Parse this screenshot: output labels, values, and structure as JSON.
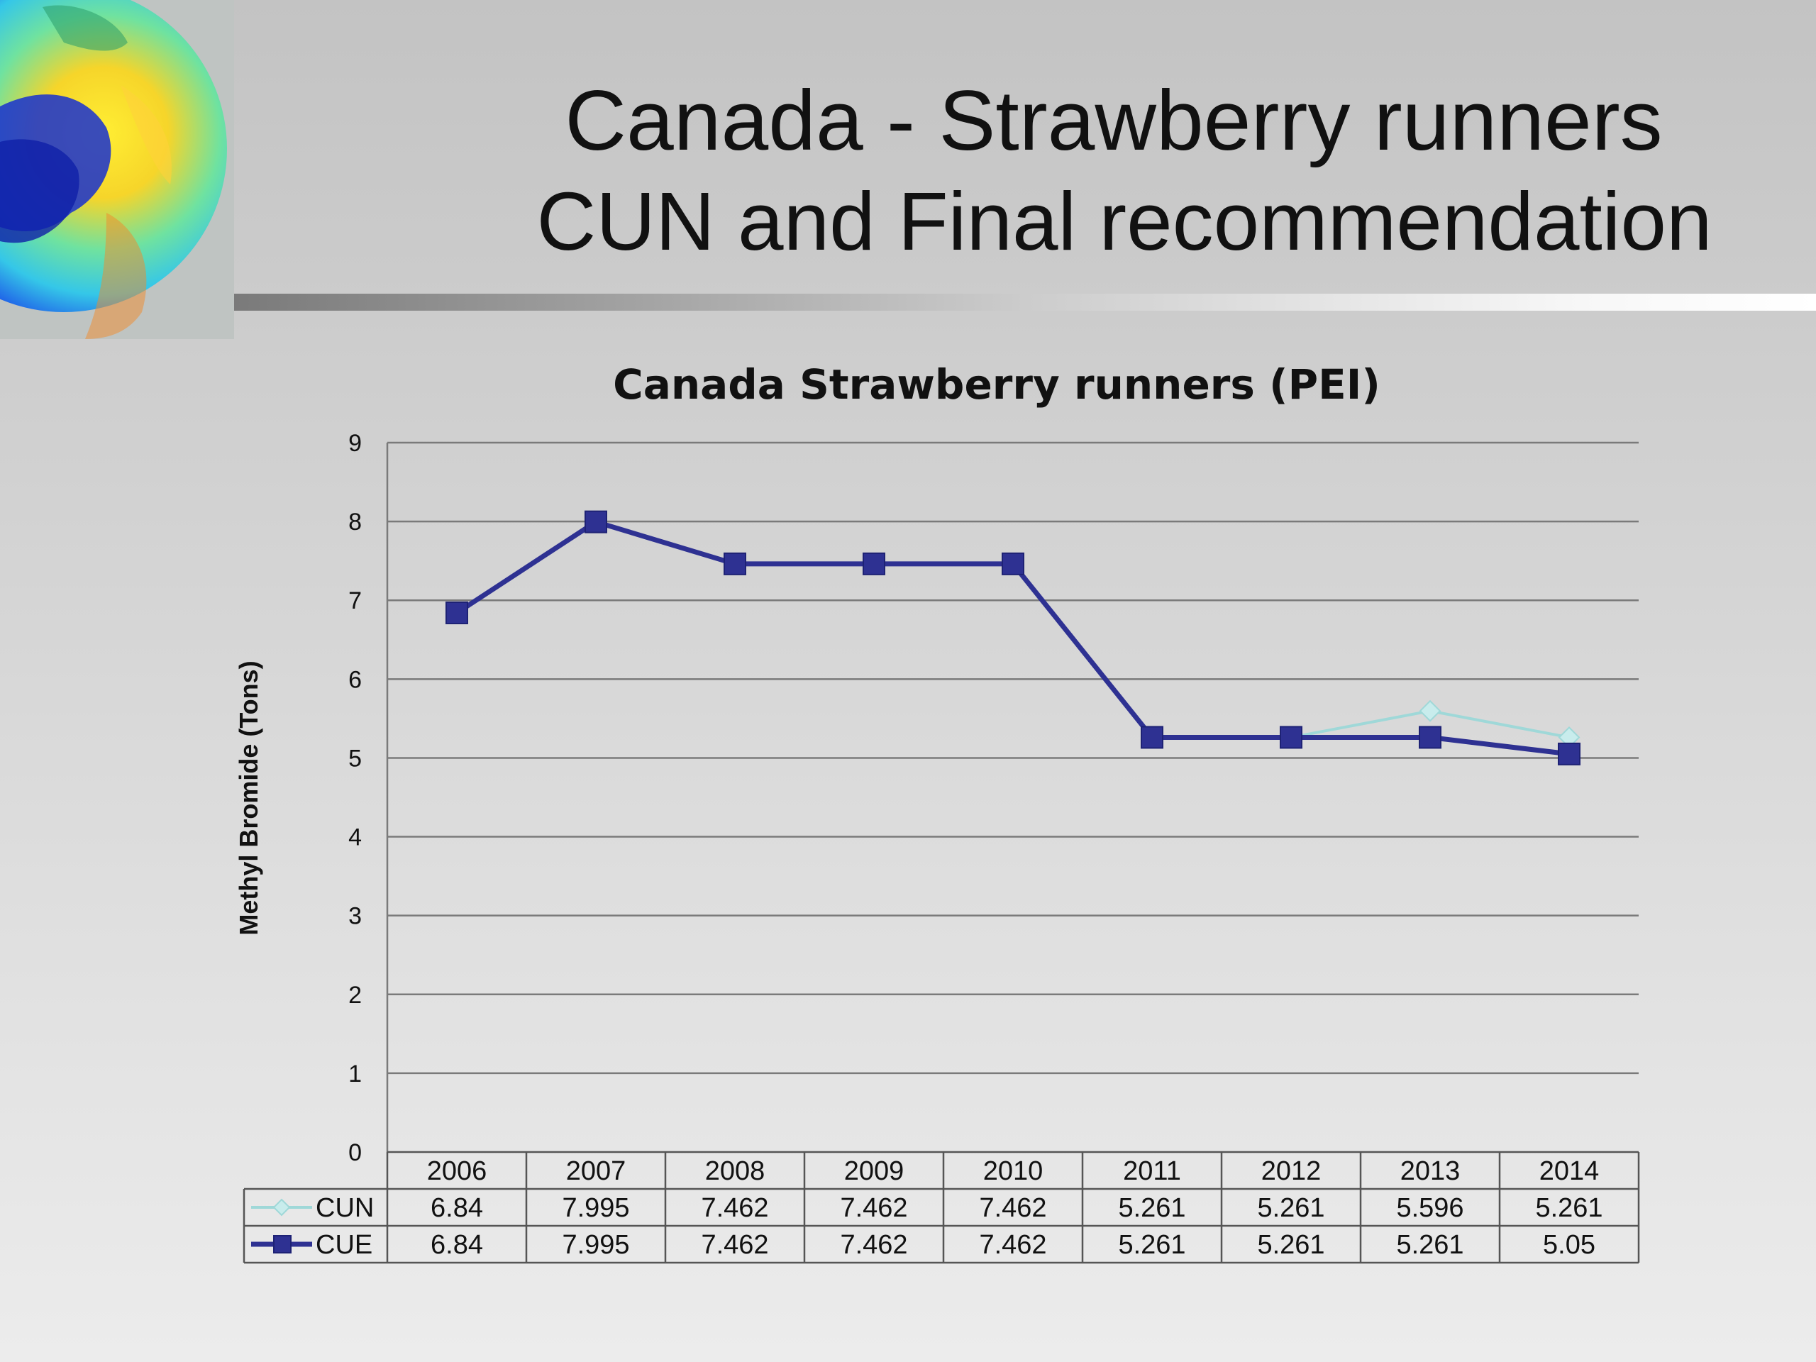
{
  "slide": {
    "title_line1": "Canada - Strawberry runners",
    "title_line2": "CUN and Final recommendation",
    "logo_icon": "earth-ozone-globe"
  },
  "colors": {
    "cue": "#2e3192",
    "cun": "#9fd8d8",
    "cun_marker": "#c8ecec",
    "grid": "#7a7a7a"
  },
  "chart_data": {
    "type": "line",
    "title": "Canada Strawberry runners (PEI)",
    "xlabel": "",
    "ylabel": "Methyl Bromide (Tons)",
    "categories": [
      "2006",
      "2007",
      "2008",
      "2009",
      "2010",
      "2011",
      "2012",
      "2013",
      "2014"
    ],
    "ylim": [
      0,
      9
    ],
    "yticks": [
      "0",
      "1",
      "2",
      "3",
      "4",
      "5",
      "6",
      "7",
      "8",
      "9"
    ],
    "grid": true,
    "legend": "data-table",
    "series": [
      {
        "name": "CUN",
        "values": [
          6.84,
          7.995,
          7.462,
          7.462,
          7.462,
          5.261,
          5.261,
          5.596,
          5.261
        ],
        "labels": [
          "6.84",
          "7.995",
          "7.462",
          "7.462",
          "7.462",
          "5.261",
          "5.261",
          "5.596",
          "5.261"
        ]
      },
      {
        "name": "CUE",
        "values": [
          6.84,
          7.995,
          7.462,
          7.462,
          7.462,
          5.261,
          5.261,
          5.261,
          5.05
        ],
        "labels": [
          "6.84",
          "7.995",
          "7.462",
          "7.462",
          "7.462",
          "5.261",
          "5.261",
          "5.261",
          "5.05"
        ]
      }
    ]
  }
}
